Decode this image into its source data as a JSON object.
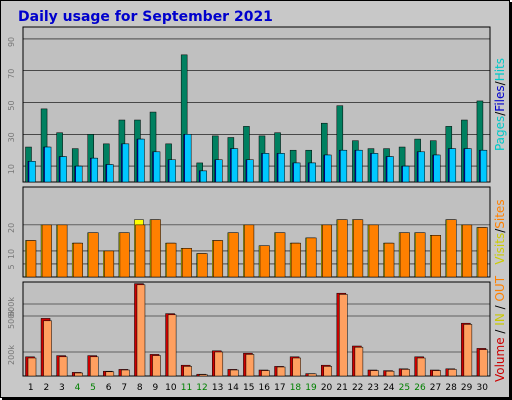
{
  "title": "Daily usage for September 2021",
  "chart_data": [
    {
      "type": "bar",
      "title": "Daily usage for September 2021",
      "panel": "top",
      "x": [
        1,
        2,
        3,
        4,
        5,
        6,
        7,
        8,
        9,
        10,
        11,
        12,
        13,
        14,
        15,
        16,
        17,
        18,
        19,
        20,
        21,
        22,
        23,
        24,
        25,
        26,
        27,
        28,
        29,
        30
      ],
      "ylim": [
        0,
        95
      ],
      "ticks": [
        "10",
        "30",
        "50",
        "70",
        "90"
      ],
      "tick_values": [
        10,
        30,
        50,
        70,
        90
      ],
      "series": [
        {
          "name": "Pages",
          "color": "#008080",
          "values": [
            13,
            22,
            16,
            10,
            15,
            11,
            24,
            27,
            19,
            14,
            30,
            7,
            14,
            21,
            14,
            18,
            18,
            12,
            12,
            17,
            20,
            20,
            18,
            16,
            10,
            19,
            17,
            21,
            21,
            20
          ]
        },
        {
          "name": "Files",
          "color": "#0000ff",
          "values": [
            13,
            22,
            16,
            10,
            15,
            11,
            24,
            27,
            19,
            14,
            30,
            7,
            14,
            21,
            14,
            18,
            18,
            12,
            12,
            17,
            20,
            20,
            18,
            16,
            10,
            19,
            17,
            21,
            21,
            20
          ]
        },
        {
          "name": "Hits",
          "color": "#00c8ff",
          "values": [
            13,
            22,
            16,
            10,
            15,
            11,
            24,
            27,
            19,
            14,
            30,
            7,
            14,
            21,
            14,
            18,
            18,
            12,
            12,
            17,
            20,
            20,
            18,
            16,
            10,
            19,
            17,
            21,
            21,
            20
          ]
        },
        {
          "name": "Hits (back)",
          "color": "#008060",
          "values": [
            22,
            46,
            31,
            21,
            30,
            24,
            39,
            39,
            44,
            24,
            80,
            12,
            29,
            28,
            35,
            29,
            31,
            20,
            20,
            37,
            48,
            26,
            21,
            21,
            22,
            27,
            26,
            35,
            39,
            51
          ]
        }
      ],
      "side_label": [
        "Pages",
        "Files",
        "Hits"
      ],
      "side_colors": [
        "#00c8c8",
        "#0000cc",
        "#00c8c8"
      ]
    },
    {
      "type": "bar",
      "panel": "middle",
      "x": [
        1,
        2,
        3,
        4,
        5,
        6,
        7,
        8,
        9,
        10,
        11,
        12,
        13,
        14,
        15,
        16,
        17,
        18,
        19,
        20,
        21,
        22,
        23,
        24,
        25,
        26,
        27,
        28,
        29,
        30
      ],
      "ylim": [
        0,
        33
      ],
      "ticks": [
        "5",
        "10",
        "20"
      ],
      "tick_values": [
        5,
        10,
        20
      ],
      "series": [
        {
          "name": "Visits",
          "color": "#ffff00",
          "values": [
            14,
            20,
            20,
            13,
            17,
            10,
            17,
            22,
            22,
            13,
            11,
            9,
            14,
            17,
            20,
            12,
            17,
            13,
            15,
            20,
            22,
            22,
            20,
            13,
            17,
            17,
            16,
            22,
            20,
            19
          ]
        },
        {
          "name": "Sites",
          "color": "#ff8000",
          "values": [
            14,
            20,
            20,
            13,
            17,
            10,
            17,
            20,
            22,
            13,
            11,
            9,
            14,
            17,
            20,
            12,
            17,
            13,
            15,
            20,
            22,
            22,
            20,
            13,
            17,
            17,
            16,
            22,
            20,
            19
          ]
        }
      ],
      "side_label": [
        "Visits",
        "Sites"
      ],
      "side_colors": [
        "#cccc00",
        "#ff8000"
      ]
    },
    {
      "type": "bar",
      "panel": "bottom",
      "x": [
        1,
        2,
        3,
        4,
        5,
        6,
        7,
        8,
        9,
        10,
        11,
        12,
        13,
        14,
        15,
        16,
        17,
        18,
        19,
        20,
        21,
        22,
        23,
        24,
        25,
        26,
        27,
        28,
        29,
        30
      ],
      "ylim": [
        0,
        750
      ],
      "ticks": [
        "200k",
        "500k",
        "600k"
      ],
      "tick_values": [
        200,
        500,
        600
      ],
      "series": [
        {
          "name": "Volume",
          "color": "#cc0000",
          "values": [
            160,
            480,
            170,
            30,
            170,
            40,
            55,
            770,
            180,
            520,
            90,
            15,
            210,
            55,
            190,
            50,
            80,
            160,
            20,
            90,
            690,
            250,
            50,
            45,
            60,
            160,
            50,
            60,
            440,
            230
          ]
        },
        {
          "name": "IN",
          "color": "#c8c800",
          "values": [
            0,
            0,
            0,
            0,
            0,
            0,
            0,
            0,
            0,
            0,
            0,
            0,
            0,
            0,
            0,
            0,
            0,
            0,
            0,
            0,
            0,
            0,
            0,
            0,
            0,
            0,
            0,
            0,
            0,
            0
          ]
        },
        {
          "name": "OUT",
          "color": "#ffa060",
          "values": [
            150,
            460,
            160,
            25,
            160,
            35,
            50,
            760,
            170,
            510,
            80,
            12,
            200,
            50,
            180,
            45,
            75,
            150,
            18,
            80,
            680,
            240,
            45,
            40,
            55,
            150,
            45,
            55,
            430,
            220
          ]
        }
      ],
      "side_label": [
        "Volume",
        "IN",
        "OUT"
      ],
      "side_colors": [
        "#cc0000",
        "#c8c800",
        "#ff8000"
      ]
    }
  ],
  "weekend_days": [
    4,
    5,
    11,
    12,
    18,
    19,
    25,
    26
  ],
  "weekday_color": "#000000",
  "weekend_color": "#008000"
}
